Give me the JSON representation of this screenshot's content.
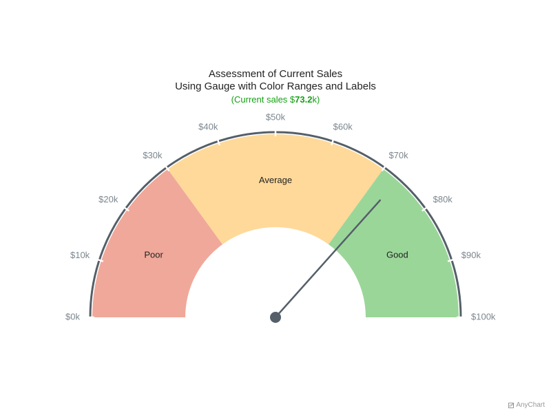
{
  "chart_data": {
    "type": "gauge",
    "title": "Assessment of Current Sales",
    "subtitle": "Using Gauge with Color Ranges and Labels",
    "current_label": {
      "prefix": "(Current sales $",
      "value_text": "73.2",
      "suffix": "k)"
    },
    "value": 73.2,
    "min": 0,
    "max": 100,
    "ticks": [
      0,
      10,
      20,
      30,
      40,
      50,
      60,
      70,
      80,
      90,
      100
    ],
    "tick_labels": [
      "$0k",
      "$10k",
      "$20k",
      "$30k",
      "$40k",
      "$50k",
      "$60k",
      "$70k",
      "$80k",
      "$90k",
      "$100k"
    ],
    "ranges": [
      {
        "from": 0,
        "to": 30,
        "label": "Poor",
        "color": "#f0a89a"
      },
      {
        "from": 30,
        "to": 70,
        "label": "Average",
        "color": "#ffd999"
      },
      {
        "from": 70,
        "to": 100,
        "label": "Good",
        "color": "#9bd699"
      }
    ],
    "needle_color": "#545f69",
    "axis_color": "#545f69",
    "tick_label_color": "#7c868e"
  },
  "credit": "AnyChart"
}
